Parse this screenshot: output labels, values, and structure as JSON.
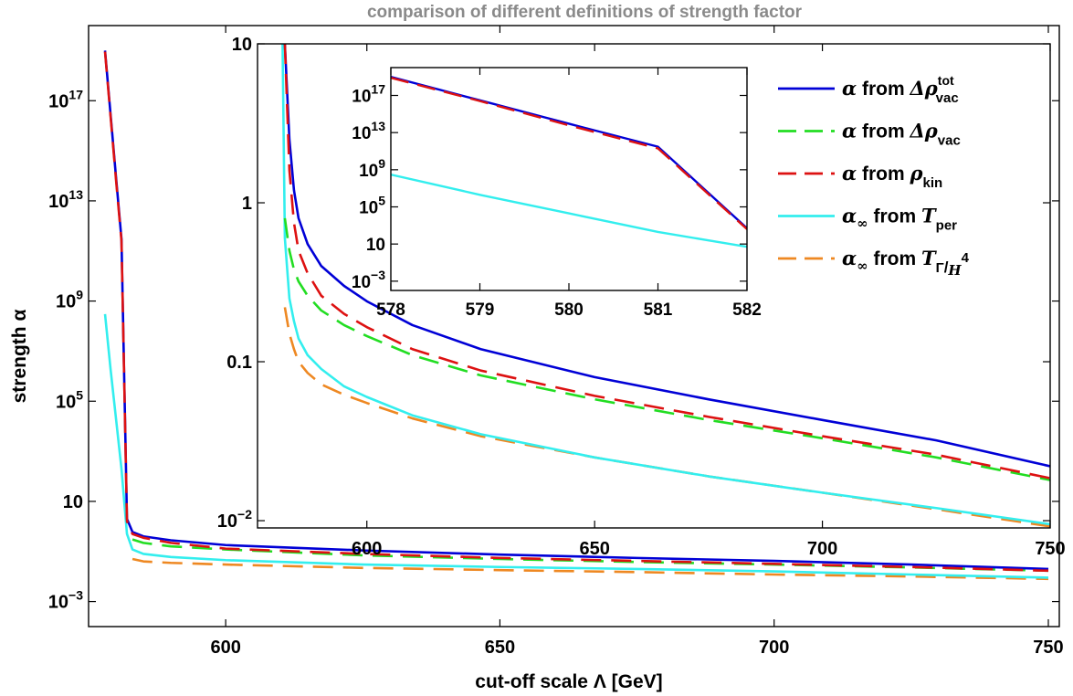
{
  "chart_data": [
    {
      "type": "line",
      "title": "comparison of different definitions of strength factor",
      "xlabel": "cut-off scale Λ [GeV]",
      "ylabel": "strength α",
      "xlim": [
        575,
        752
      ],
      "y_scale": "log",
      "ylim": [
        0.0001,
        1e+20
      ],
      "x_ticks": [
        600,
        650,
        700,
        750
      ],
      "y_ticks": [
        {
          "value": 0.001,
          "mantissa": "10",
          "exp": "−3"
        },
        {
          "value": 10,
          "mantissa": "10",
          "exp": ""
        },
        {
          "value": 100000,
          "mantissa": "10",
          "exp": "5"
        },
        {
          "value": 1000000000,
          "mantissa": "10",
          "exp": "9"
        },
        {
          "value": 10000000000000.0,
          "mantissa": "10",
          "exp": "13"
        },
        {
          "value": 1e+17,
          "mantissa": "10",
          "exp": "17"
        }
      ],
      "grid": false,
      "series": [
        {
          "key": "rho_tot",
          "color": "#0000d6",
          "dash": "solid",
          "x": [
            578,
            579,
            580,
            581,
            582,
            583,
            585,
            590,
            600,
            625,
            650,
            675,
            700,
            725,
            750
          ],
          "y": [
            1e+19,
            3e+16,
            90000000000000.0,
            300000000000.0,
            2,
            0.6,
            0.4,
            0.28,
            0.18,
            0.11,
            0.075,
            0.055,
            0.042,
            0.03,
            0.02
          ]
        },
        {
          "key": "rho_vac",
          "color": "#22dd22",
          "dash": "dashed",
          "x": [
            583,
            585,
            590,
            600,
            625,
            650,
            675,
            700,
            725,
            750
          ],
          "y": [
            0.3,
            0.22,
            0.16,
            0.12,
            0.07,
            0.05,
            0.038,
            0.03,
            0.023,
            0.017
          ]
        },
        {
          "key": "rho_kin",
          "color": "#dd1111",
          "dash": "dashed",
          "x": [
            578,
            579,
            580,
            581,
            582,
            583,
            585,
            590,
            600,
            625,
            650,
            675,
            700,
            725,
            750
          ],
          "y": [
            9e+18,
            2.5e+16,
            70000000000000.0,
            250000000000.0,
            1.6,
            0.5,
            0.35,
            0.22,
            0.13,
            0.08,
            0.055,
            0.042,
            0.032,
            0.024,
            0.017
          ]
        },
        {
          "key": "t_per",
          "color": "#33eeee",
          "dash": "solid",
          "x": [
            578,
            579,
            580,
            581,
            582,
            583,
            585,
            590,
            600,
            625,
            650,
            675,
            700,
            725,
            750
          ],
          "y": [
            300000000,
            2000000,
            20000,
            200,
            0.5,
            0.12,
            0.08,
            0.06,
            0.045,
            0.03,
            0.024,
            0.02,
            0.016,
            0.012,
            0.009
          ]
        },
        {
          "key": "t_gamma",
          "color": "#ee8822",
          "dash": "dashed",
          "x": [
            583,
            585,
            590,
            600,
            625,
            650,
            675,
            700,
            725,
            750
          ],
          "y": [
            0.05,
            0.04,
            0.035,
            0.03,
            0.022,
            0.018,
            0.015,
            0.012,
            0.01,
            0.008
          ]
        }
      ]
    },
    {
      "type": "line",
      "title": "",
      "xlim": [
        576,
        750
      ],
      "y_scale": "log",
      "ylim": [
        0.009,
        10
      ],
      "x_ticks": [
        600,
        650,
        700,
        750
      ],
      "y_ticks": [
        {
          "value": 0.01,
          "mantissa": "10",
          "exp": "−2"
        },
        {
          "value": 0.1,
          "mantissa": "0.1",
          "exp": ""
        },
        {
          "value": 1,
          "mantissa": "1",
          "exp": ""
        },
        {
          "value": 10,
          "mantissa": "10",
          "exp": ""
        }
      ],
      "series": [
        {
          "key": "rho_tot",
          "color": "#0000d6",
          "dash": "solid",
          "x": [
            582,
            583,
            584,
            585,
            587,
            590,
            595,
            600,
            610,
            625,
            650,
            675,
            700,
            725,
            750
          ],
          "y": [
            10,
            2.5,
            1.2,
            0.8,
            0.55,
            0.4,
            0.3,
            0.24,
            0.17,
            0.12,
            0.08,
            0.058,
            0.043,
            0.032,
            0.022
          ]
        },
        {
          "key": "rho_vac",
          "color": "#22dd22",
          "dash": "dashed",
          "x": [
            582,
            583,
            584,
            585,
            587,
            590,
            595,
            600,
            610,
            625,
            650,
            675,
            700,
            725,
            750
          ],
          "y": [
            0.8,
            0.5,
            0.38,
            0.32,
            0.26,
            0.21,
            0.17,
            0.145,
            0.11,
            0.082,
            0.058,
            0.043,
            0.033,
            0.025,
            0.018
          ]
        },
        {
          "key": "rho_kin",
          "color": "#dd1111",
          "dash": "dashed",
          "x": [
            582,
            583,
            584,
            585,
            587,
            590,
            595,
            600,
            610,
            625,
            650,
            675,
            700,
            725,
            750
          ],
          "y": [
            10,
            1.6,
            0.75,
            0.5,
            0.36,
            0.26,
            0.2,
            0.165,
            0.12,
            0.088,
            0.061,
            0.045,
            0.034,
            0.026,
            0.0185
          ]
        },
        {
          "key": "t_per",
          "color": "#33eeee",
          "dash": "solid",
          "x": [
            581.5,
            582,
            583,
            584,
            585,
            587,
            590,
            595,
            600,
            610,
            625,
            650,
            675,
            700,
            725,
            750
          ],
          "y": [
            10,
            0.6,
            0.25,
            0.18,
            0.14,
            0.11,
            0.09,
            0.07,
            0.06,
            0.046,
            0.035,
            0.025,
            0.019,
            0.015,
            0.012,
            0.0095
          ]
        },
        {
          "key": "t_gamma",
          "color": "#ee8822",
          "dash": "dashed",
          "x": [
            582,
            583,
            584,
            585,
            587,
            590,
            595,
            600,
            610,
            625,
            650,
            675,
            700,
            725,
            750
          ],
          "y": [
            0.22,
            0.15,
            0.12,
            0.1,
            0.085,
            0.072,
            0.062,
            0.055,
            0.044,
            0.034,
            0.025,
            0.019,
            0.015,
            0.0118,
            0.0092
          ]
        }
      ]
    },
    {
      "type": "line",
      "title": "",
      "xlim": [
        578,
        582
      ],
      "y_scale": "log",
      "ylim": [
        0.0001,
        1e+20
      ],
      "x_ticks": [
        578,
        579,
        580,
        581,
        582
      ],
      "y_ticks": [
        {
          "value": 0.001,
          "mantissa": "10",
          "exp": "−3"
        },
        {
          "value": 10,
          "mantissa": "10",
          "exp": ""
        },
        {
          "value": 100000,
          "mantissa": "10",
          "exp": "5"
        },
        {
          "value": 1000000000,
          "mantissa": "10",
          "exp": "9"
        },
        {
          "value": 10000000000000.0,
          "mantissa": "10",
          "exp": "13"
        },
        {
          "value": 1e+17,
          "mantissa": "10",
          "exp": "17"
        }
      ],
      "series": [
        {
          "key": "rho_tot",
          "color": "#0000d6",
          "dash": "solid",
          "x": [
            578,
            579,
            580,
            581,
            582
          ],
          "y": [
            1e+19,
            3e+16,
            90000000000000.0,
            300000000000.0,
            500
          ]
        },
        {
          "key": "rho_kin",
          "color": "#dd1111",
          "dash": "dashed",
          "x": [
            578,
            579,
            580,
            581,
            582
          ],
          "y": [
            8e+18,
            2.5e+16,
            60000000000000.0,
            200000000000.0,
            400
          ]
        },
        {
          "key": "t_per",
          "color": "#33eeee",
          "dash": "solid",
          "x": [
            578,
            579,
            580,
            581,
            582
          ],
          "y": [
            300000000,
            2000000,
            20000,
            200,
            5
          ]
        }
      ]
    }
  ],
  "legend": {
    "placement": "top-right",
    "entries": [
      {
        "key": "rho_tot",
        "color": "#0000d6",
        "dash": "solid",
        "alpha": "α",
        "from": "from",
        "sym": "Δρ",
        "sub": "vac",
        "sup": "tot"
      },
      {
        "key": "rho_vac",
        "color": "#22dd22",
        "dash": "dashed",
        "alpha": "α",
        "from": "from",
        "sym": "Δρ",
        "sub": "vac",
        "sup": ""
      },
      {
        "key": "rho_kin",
        "color": "#dd1111",
        "dash": "dashed",
        "alpha": "α",
        "from": "from",
        "sym": "ρ",
        "sub": "kin",
        "sup": ""
      },
      {
        "key": "t_per",
        "color": "#33eeee",
        "dash": "solid",
        "alpha": "α∞",
        "from": "from",
        "sym": "T",
        "sub": "per",
        "sup": ""
      },
      {
        "key": "t_gamma",
        "color": "#ee8822",
        "dash": "dashed",
        "alpha": "α∞",
        "from": "from",
        "sym": "T",
        "sub": "Γ",
        "subtail": "H",
        "subtailexp": "4",
        "sup": ""
      }
    ]
  }
}
